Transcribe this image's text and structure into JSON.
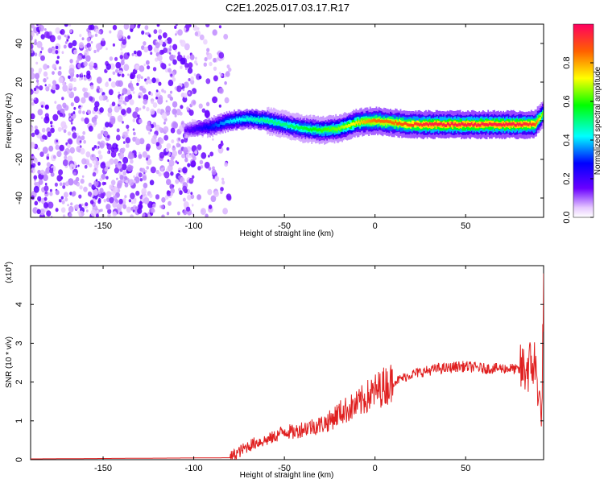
{
  "title": "C2E1.2025.017.03.17.R17",
  "colors": {
    "snr_line": "#e02020",
    "frame": "#000000"
  },
  "chart_data": [
    {
      "type": "heatmap",
      "xlabel": "Height of straight line (km)",
      "ylabel": "Frequency (Hz)",
      "xlim": [
        -190,
        93
      ],
      "ylim": [
        -50,
        50
      ],
      "xticks": [
        -150,
        -100,
        -50,
        0,
        50
      ],
      "yticks": [
        -40,
        -20,
        0,
        20,
        40
      ],
      "colorbar": {
        "label": "Normalized spectral amplitude",
        "range": [
          0,
          1
        ],
        "ticks": [
          0.0,
          0.2,
          0.4,
          0.6,
          0.8
        ]
      },
      "noise_region_km": [
        -190,
        -90
      ],
      "ridge": {
        "x": [
          -105,
          -90,
          -80,
          -70,
          -60,
          -50,
          -40,
          -30,
          -20,
          -10,
          0,
          10,
          20,
          30,
          40,
          50,
          60,
          70,
          80,
          88,
          93
        ],
        "freq": [
          -5,
          -3,
          0,
          1,
          0,
          -2,
          -4,
          -5,
          -4,
          -1,
          0,
          -1,
          -2,
          -2,
          -2,
          -2,
          -2,
          -2,
          -2,
          -2,
          4
        ],
        "amplitude": [
          0.15,
          0.3,
          0.4,
          0.45,
          0.5,
          0.5,
          0.55,
          0.6,
          0.65,
          0.75,
          0.85,
          0.85,
          0.9,
          0.95,
          0.95,
          0.95,
          0.95,
          0.95,
          0.95,
          0.9,
          0.6
        ]
      }
    },
    {
      "type": "line",
      "xlabel": "Height of straight line (km)",
      "ylabel": "SNR (10 * v/v)",
      "y_multiplier": "(x10",
      "y_multiplier_exp": "4",
      "xlim": [
        -190,
        93
      ],
      "ylim": [
        0,
        5
      ],
      "xticks": [
        -150,
        -100,
        -50,
        0,
        50
      ],
      "yticks": [
        0,
        1,
        2,
        3,
        4
      ],
      "series": [
        {
          "x": [
            -190,
            -80,
            -75,
            -70,
            -65,
            -60,
            -55,
            -50,
            -45,
            -40,
            -35,
            -30,
            -25,
            -20,
            -15,
            -10,
            -5,
            0,
            5,
            10,
            15,
            20,
            25,
            30,
            35,
            40,
            45,
            50,
            55,
            60,
            65,
            70,
            75,
            80,
            85,
            88,
            90,
            92,
            93
          ],
          "values": [
            0.02,
            0.05,
            0.2,
            0.35,
            0.45,
            0.5,
            0.6,
            0.75,
            0.7,
            0.8,
            0.85,
            0.9,
            1.0,
            1.2,
            1.3,
            1.4,
            1.6,
            1.75,
            1.9,
            2.0,
            2.1,
            2.2,
            2.25,
            2.3,
            2.35,
            2.35,
            2.4,
            2.4,
            2.38,
            2.35,
            2.35,
            2.35,
            2.35,
            2.3,
            2.4,
            2.5,
            1.8,
            1.1,
            4.8
          ]
        }
      ]
    }
  ]
}
